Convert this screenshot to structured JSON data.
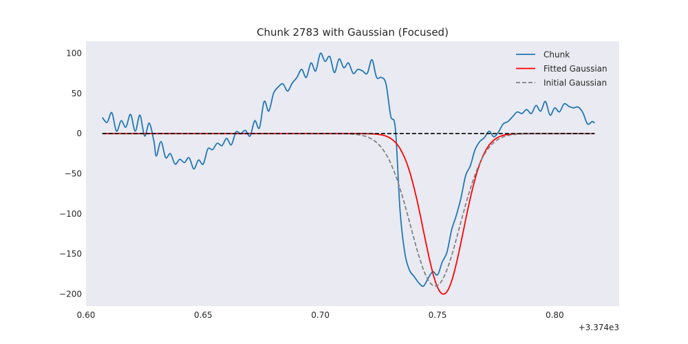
{
  "chart_data": {
    "type": "line",
    "title": "Chunk 2783 with Gaussian (Focused)",
    "xlabel": "",
    "ylabel": "",
    "x_offset_label": "+3.374e3",
    "xlim": [
      0.6,
      0.8275
    ],
    "ylim": [
      -215,
      115
    ],
    "x_ticks": [
      0.6,
      0.65,
      0.7,
      0.75,
      0.8
    ],
    "x_tick_labels": [
      "0.60",
      "0.65",
      "0.70",
      "0.75",
      "0.80"
    ],
    "y_ticks": [
      100,
      50,
      0,
      -50,
      -100,
      -150,
      -200
    ],
    "y_tick_labels": [
      "100",
      "50",
      "0",
      "−50",
      "−100",
      "−150",
      "−200"
    ],
    "grid": false,
    "background": "#eaeaf2",
    "legend_position": "top-right",
    "series": [
      {
        "name": "Chunk",
        "color": "#1f77b4",
        "style": "solid",
        "x": [
          0.607,
          0.609,
          0.611,
          0.613,
          0.615,
          0.617,
          0.619,
          0.621,
          0.623,
          0.625,
          0.627,
          0.629,
          0.63,
          0.632,
          0.634,
          0.636,
          0.638,
          0.64,
          0.642,
          0.644,
          0.646,
          0.648,
          0.65,
          0.652,
          0.654,
          0.656,
          0.658,
          0.66,
          0.662,
          0.664,
          0.666,
          0.668,
          0.67,
          0.672,
          0.674,
          0.676,
          0.678,
          0.68,
          0.682,
          0.684,
          0.686,
          0.688,
          0.69,
          0.692,
          0.694,
          0.696,
          0.698,
          0.7,
          0.702,
          0.704,
          0.706,
          0.708,
          0.71,
          0.712,
          0.714,
          0.716,
          0.718,
          0.72,
          0.722,
          0.724,
          0.726,
          0.728,
          0.73,
          0.732,
          0.734,
          0.736,
          0.738,
          0.74,
          0.742,
          0.744,
          0.746,
          0.748,
          0.75,
          0.752,
          0.754,
          0.756,
          0.758,
          0.76,
          0.762,
          0.764,
          0.766,
          0.768,
          0.77,
          0.772,
          0.774,
          0.776,
          0.778,
          0.78,
          0.782,
          0.784,
          0.786,
          0.788,
          0.79,
          0.792,
          0.794,
          0.796,
          0.798,
          0.8,
          0.802,
          0.804,
          0.806,
          0.808,
          0.81,
          0.812,
          0.814,
          0.816,
          0.817
        ],
        "y": [
          20,
          14,
          26,
          3,
          16,
          8,
          24,
          3,
          23,
          -3,
          13,
          -10,
          -28,
          -10,
          -30,
          -25,
          -38,
          -32,
          -36,
          -30,
          -44,
          -33,
          -38,
          -19,
          -20,
          -12,
          -15,
          -6,
          -14,
          2,
          0,
          4,
          -3,
          16,
          7,
          40,
          28,
          50,
          58,
          62,
          53,
          63,
          70,
          80,
          70,
          88,
          78,
          100,
          90,
          96,
          76,
          93,
          82,
          88,
          75,
          80,
          78,
          75,
          92,
          70,
          70,
          62,
          22,
          6,
          -96,
          -148,
          -170,
          -178,
          -186,
          -190,
          -180,
          -172,
          -176,
          -160,
          -148,
          -120,
          -102,
          -80,
          -52,
          -40,
          -20,
          -10,
          -5,
          3,
          -4,
          2,
          12,
          15,
          21,
          27,
          25,
          30,
          25,
          35,
          28,
          40,
          23,
          32,
          27,
          37,
          34,
          32,
          33,
          26,
          12,
          15,
          13
        ]
      },
      {
        "name": "Fitted Gaussian",
        "color": "#ff0000",
        "style": "solid",
        "gaussian": {
          "amplitude": -200,
          "mean": 0.7525,
          "sigma": 0.0085
        }
      },
      {
        "name": "Initial Gaussian",
        "color": "#808080",
        "style": "dashed",
        "gaussian": {
          "amplitude": -190,
          "mean": 0.749,
          "sigma": 0.0105
        }
      }
    ],
    "baseline": {
      "y": 0,
      "color": "#000000",
      "style": "dashed"
    }
  }
}
